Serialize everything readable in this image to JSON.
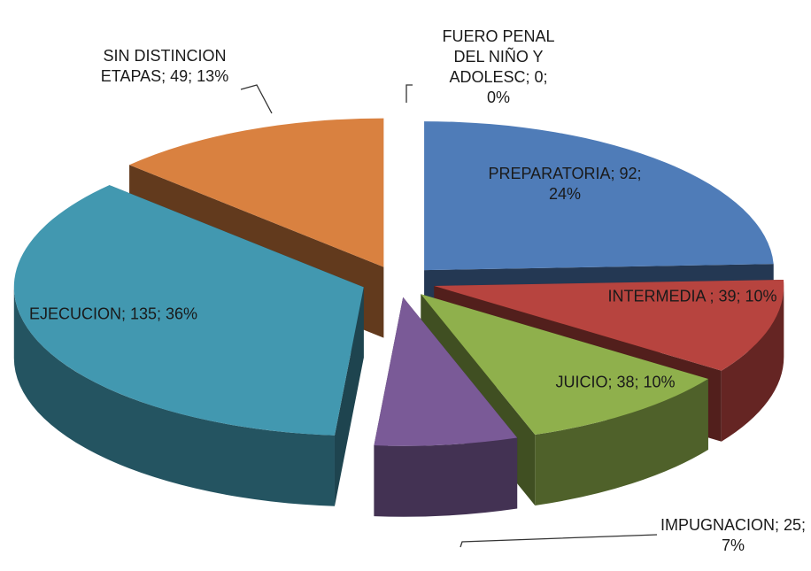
{
  "chart_data": {
    "type": "pie3d",
    "values": [
      92,
      39,
      38,
      25,
      135,
      49,
      0
    ],
    "value_labels": [
      "PREPARATORIA; 92; 24%",
      "INTERMEDIA ; 39; 10%",
      "JUICIO; 38; 10%",
      "IMPUGNACION; 25; 7%",
      "EJECUCION; 135; 36%",
      "SIN DISTINCION ETAPAS; 49; 13%",
      "FUERO PENAL DEL NIÑO Y ADOLESC; 0; 0%"
    ],
    "colors": [
      "#4f7cb8",
      "#b7443f",
      "#8fb04c",
      "#7a5a97",
      "#4298b0",
      "#d98140",
      "#9a9a9a"
    ]
  }
}
